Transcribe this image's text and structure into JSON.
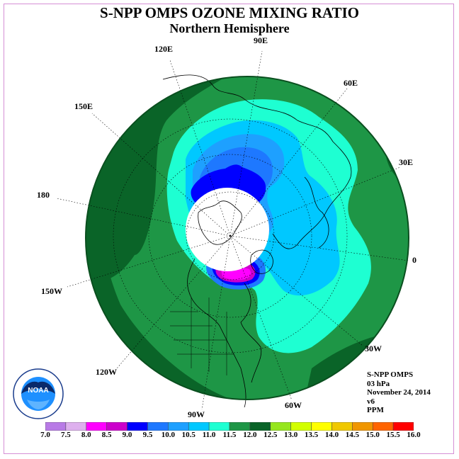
{
  "title": "S-NPP OMPS OZONE MIXING RATIO",
  "subtitle": "Northern Hemisphere",
  "longitude_labels": [
    {
      "id": "90e",
      "text": "90E"
    },
    {
      "id": "60e",
      "text": "60E"
    },
    {
      "id": "30e",
      "text": "30E"
    },
    {
      "id": "0",
      "text": "0"
    },
    {
      "id": "30w",
      "text": "30W"
    },
    {
      "id": "60w",
      "text": "60W"
    },
    {
      "id": "90w",
      "text": "90W"
    },
    {
      "id": "120w",
      "text": "120W"
    },
    {
      "id": "150w",
      "text": "150W"
    },
    {
      "id": "180",
      "text": "180"
    },
    {
      "id": "150e",
      "text": "150E"
    },
    {
      "id": "120e",
      "text": "120E"
    }
  ],
  "info": {
    "instrument": "S-NPP OMPS",
    "pressure": "03 hPa",
    "date": "November 24, 2014",
    "version": "v6",
    "units": "PPM"
  },
  "colorbar": {
    "ticks": [
      "7.0",
      "7.5",
      "8.0",
      "8.5",
      "9.0",
      "9.5",
      "10.0",
      "10.5",
      "11.0",
      "11.5",
      "12.0",
      "12.5",
      "13.0",
      "13.5",
      "14.0",
      "14.5",
      "15.0",
      "15.5",
      "16.0"
    ],
    "colors": [
      "#b87ae6",
      "#deb0ee",
      "#ff00ff",
      "#cc00cc",
      "#0000ff",
      "#1e78ff",
      "#1ea0ff",
      "#00c8ff",
      "#1effd2",
      "#1e9646",
      "#0a6428",
      "#96e61e",
      "#d2ff00",
      "#ffff00",
      "#f0c800",
      "#f09600",
      "#ff6400",
      "#ff0000",
      "#8c5a3c"
    ]
  },
  "logo": {
    "text": "NOAA"
  }
}
